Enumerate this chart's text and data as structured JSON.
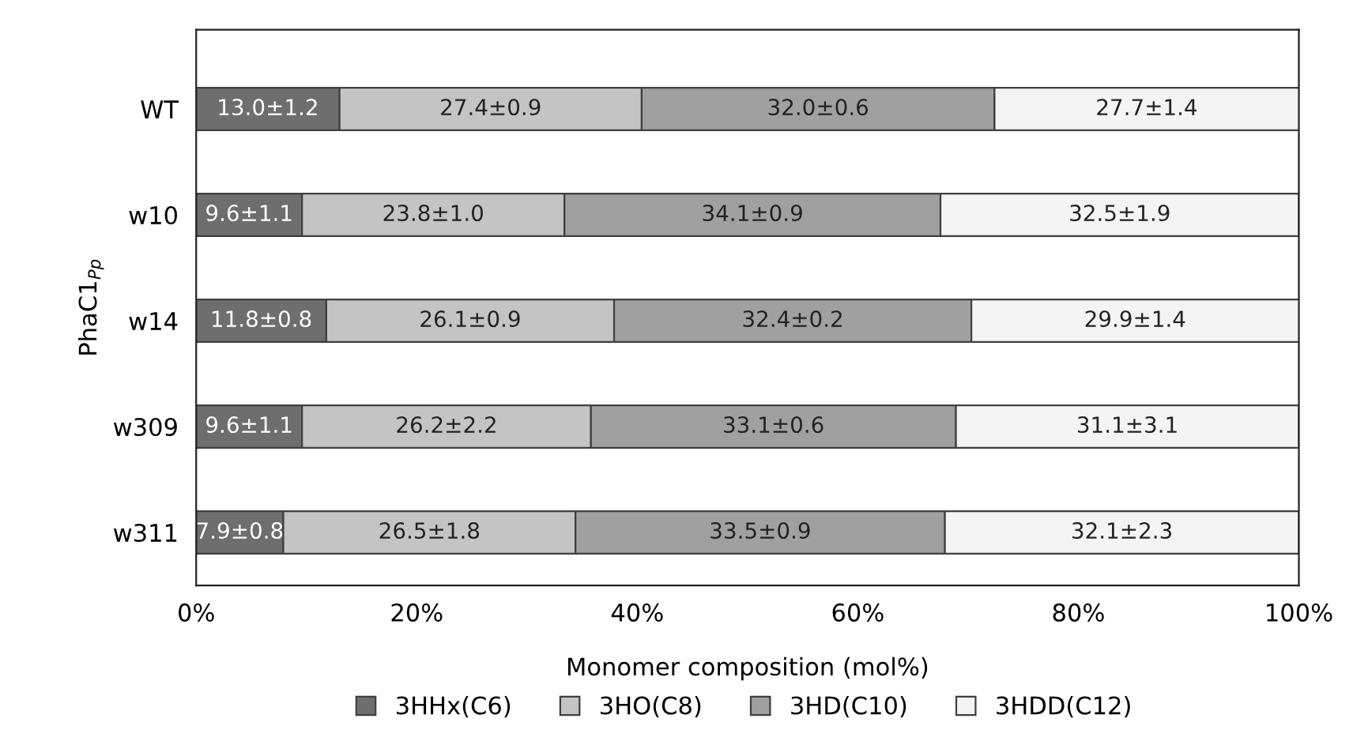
{
  "chart_data": {
    "type": "bar",
    "orientation": "horizontal",
    "stacked": true,
    "xlabel": "Monomer composition (mol%)",
    "ylabel": "PhaC1$_{Pp}$",
    "categories": [
      "WT",
      "w10",
      "w14",
      "w309",
      "w311"
    ],
    "series": [
      {
        "name": "3HHx(C6)",
        "color": "#6e6e6e",
        "values": [
          13.0,
          9.6,
          11.8,
          9.6,
          7.9
        ],
        "value_labels": [
          "13.0±1.2",
          "9.6±1.1",
          "11.8±0.8",
          "9.6±1.1",
          "7.9±0.8"
        ]
      },
      {
        "name": "3HO(C8)",
        "color": "#c4c4c4",
        "values": [
          27.4,
          23.8,
          26.1,
          26.2,
          26.5
        ],
        "value_labels": [
          "27.4±0.9",
          "23.8±1.0",
          "26.1±0.9",
          "26.2±2.2",
          "26.5±1.8"
        ]
      },
      {
        "name": "3HD(C10)",
        "color": "#a0a0a0",
        "values": [
          32.0,
          34.1,
          32.4,
          33.1,
          33.5
        ],
        "value_labels": [
          "32.0±0.6",
          "34.1±0.9",
          "32.4±0.2",
          "33.1±0.6",
          "33.5±0.9"
        ]
      },
      {
        "name": "3HDD(C12)",
        "color": "#f4f4f4",
        "values": [
          27.7,
          32.5,
          29.9,
          31.1,
          32.1
        ],
        "value_labels": [
          "27.7±1.4",
          "32.5±1.9",
          "29.9±1.4",
          "31.1±3.1",
          "32.1±2.3"
        ]
      }
    ],
    "xlim": [
      0,
      100
    ],
    "xticks": [
      {
        "value": 0,
        "label": "0%"
      },
      {
        "value": 20,
        "label": "20%"
      },
      {
        "value": 40,
        "label": "40%"
      },
      {
        "value": 60,
        "label": "60%"
      },
      {
        "value": 80,
        "label": "80%"
      },
      {
        "value": 100,
        "label": "100%"
      }
    ],
    "grid": false,
    "legend": "bottom"
  }
}
